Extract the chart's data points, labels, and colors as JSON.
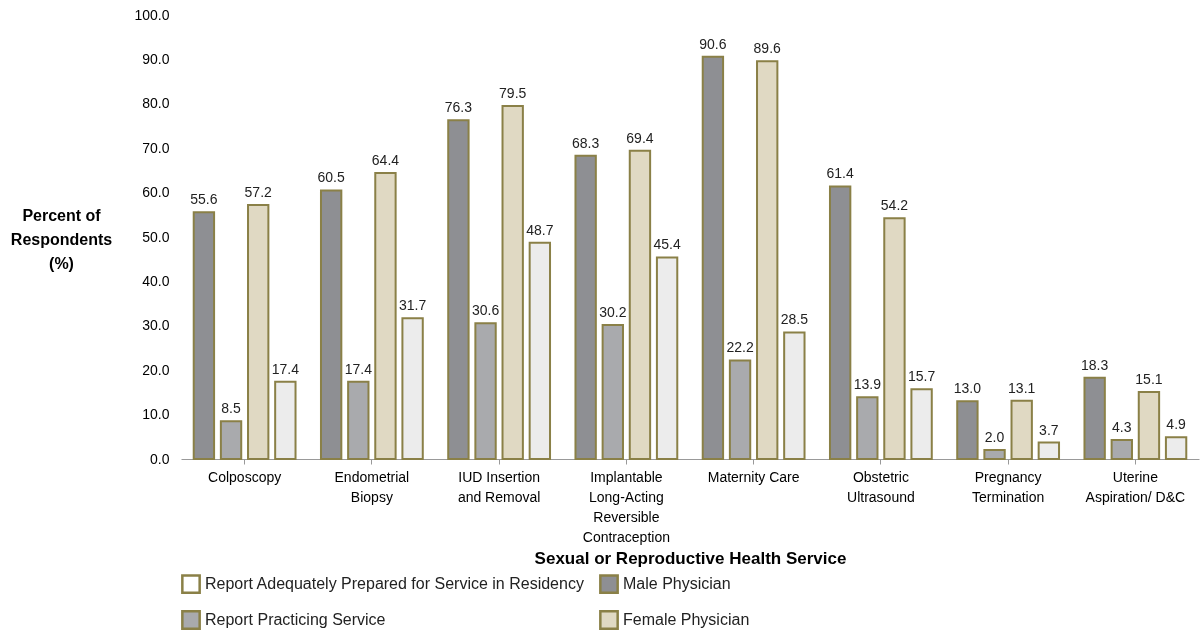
{
  "chart_data": {
    "type": "bar",
    "xlabel": "Sexual or Reproductive Health Service",
    "ylabel": "Percent of Respondents (%)",
    "categories": [
      "Colposcopy",
      "Endometrial\nBiopsy",
      "IUD Insertion\nand Removal",
      "Implantable\nLong-Acting\nReversible\nContraception",
      "Maternity Care",
      "Obstetric\nUltrasound",
      "Pregnancy\nTermination",
      "Uterine\nAspiration/ D&C"
    ],
    "series": [
      {
        "color": "#8e8f93",
        "values": [
          55.6,
          60.5,
          76.3,
          68.3,
          90.6,
          61.4,
          13.0,
          18.3
        ],
        "value_labels": [
          "55.6",
          "60.5",
          "76.3",
          "68.3",
          "90.6",
          "61.4",
          "13.0",
          "18.3"
        ]
      },
      {
        "color": "#a9aaad",
        "values": [
          8.5,
          17.4,
          30.6,
          30.2,
          22.2,
          13.9,
          2.0,
          4.3
        ],
        "value_labels": [
          "8.5",
          "17.4",
          "30.6",
          "30.2",
          "22.2",
          "13.9",
          "2.0",
          "4.3"
        ]
      },
      {
        "color": "#e0d9c3",
        "values": [
          57.2,
          64.4,
          79.5,
          69.4,
          89.6,
          54.2,
          13.1,
          15.1
        ],
        "value_labels": [
          "57.2",
          "64.4",
          "79.5",
          "69.4",
          "89.6",
          "54.2",
          "13.1",
          "15.1"
        ]
      },
      {
        "color": "#ececec",
        "values": [
          17.4,
          31.7,
          48.7,
          45.4,
          28.5,
          15.7,
          3.7,
          4.9
        ],
        "value_labels": [
          "17.4",
          "31.7",
          "48.7",
          "45.4",
          "28.5",
          "15.7",
          "3.7",
          "4.9"
        ]
      }
    ],
    "ylim": [
      0,
      100
    ],
    "yticks": [
      {
        "value": 0,
        "label": "0.0"
      },
      {
        "value": 10,
        "label": "10.0"
      },
      {
        "value": 20,
        "label": "20.0"
      },
      {
        "value": 30,
        "label": "30.0"
      },
      {
        "value": 40,
        "label": "40.0"
      },
      {
        "value": 50,
        "label": "50.0"
      },
      {
        "value": 60,
        "label": "60.0"
      },
      {
        "value": 70,
        "label": "70.0"
      },
      {
        "value": 80,
        "label": "80.0"
      },
      {
        "value": 90,
        "label": "90.0"
      },
      {
        "value": 100,
        "label": "100.0"
      }
    ],
    "grid": false,
    "annotations": [
      "Report Adequately Prepared for Service in Residency",
      "Male Physician",
      "Report Practicing Service",
      "Female Physician"
    ]
  }
}
